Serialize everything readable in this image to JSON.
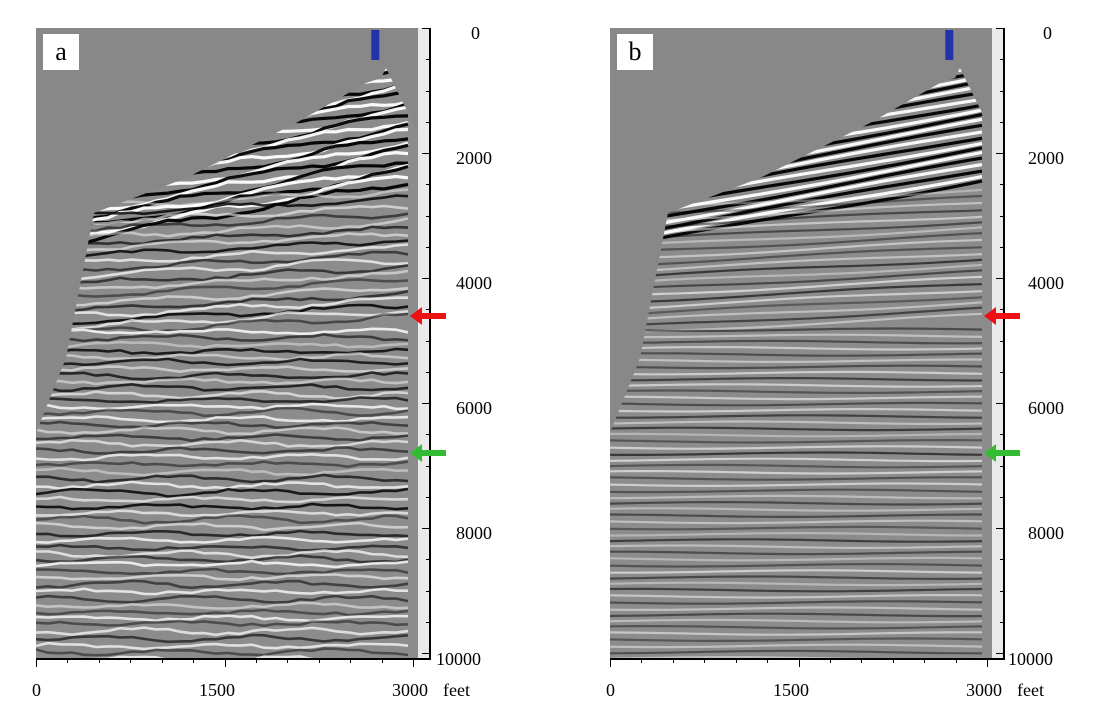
{
  "panels": [
    {
      "id": "a",
      "label": "a"
    },
    {
      "id": "b",
      "label": "b"
    }
  ],
  "axes": {
    "depth_ticks": [
      "0",
      "2000",
      "4000",
      "6000",
      "8000",
      "10000"
    ],
    "depth_tick_values": [
      0,
      2000,
      4000,
      6000,
      8000,
      10000
    ],
    "depth_range": [
      0,
      10000
    ],
    "offset_ticks": [
      "0",
      "1500",
      "3000"
    ],
    "offset_tick_values": [
      0,
      1500,
      3000
    ],
    "offset_range": [
      0,
      3000
    ],
    "offset_unit": "feet"
  },
  "markers": {
    "red_arrow_depth": 4600,
    "green_arrow_depth": 6800,
    "red_color": "#ee1111",
    "green_color": "#33bb33",
    "source_marker_offset": 2700,
    "source_marker_color": "#2233aa"
  },
  "colors": {
    "background_fill": "#888888",
    "trace_dark": "#000000",
    "trace_light": "#ffffff"
  }
}
